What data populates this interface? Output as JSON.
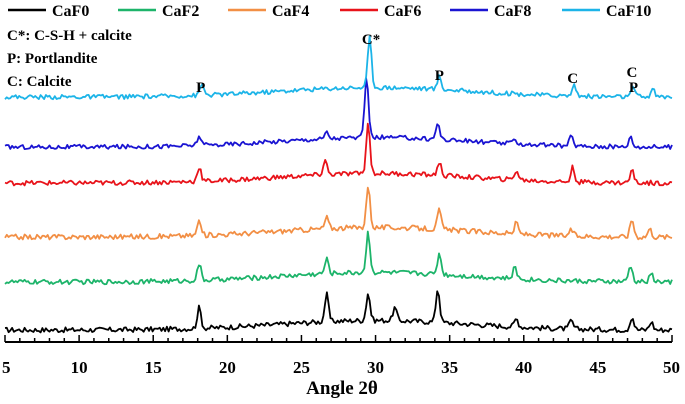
{
  "chart_data": {
    "type": "line",
    "title": "",
    "xlabel": "Angle 2θ",
    "ylabel": "",
    "xlim": [
      5,
      50
    ],
    "xticks": [
      "5",
      "10",
      "15",
      "20",
      "25",
      "30",
      "35",
      "40",
      "45",
      "50"
    ],
    "grid": false,
    "legend_position": "top",
    "series": [
      {
        "name": "CaF0",
        "color": "#000000",
        "baseline": 0,
        "noise": 1.6,
        "peaks": [
          [
            18.1,
            13
          ],
          [
            26.7,
            17
          ],
          [
            29.5,
            17
          ],
          [
            31.3,
            8
          ],
          [
            34.2,
            21
          ],
          [
            39.5,
            5
          ],
          [
            43.2,
            5
          ],
          [
            47.3,
            8
          ],
          [
            48.6,
            5
          ]
        ]
      },
      {
        "name": "CaF2",
        "color": "#1db46a",
        "baseline": 1,
        "noise": 1.5,
        "peaks": [
          [
            18.1,
            10
          ],
          [
            26.7,
            9
          ],
          [
            29.5,
            25
          ],
          [
            34.3,
            13
          ],
          [
            39.4,
            7
          ],
          [
            47.2,
            10
          ],
          [
            48.6,
            5
          ]
        ]
      },
      {
        "name": "CaF4",
        "color": "#f28f45",
        "baseline": 2,
        "noise": 1.6,
        "peaks": [
          [
            18.1,
            9
          ],
          [
            26.7,
            7
          ],
          [
            29.5,
            26
          ],
          [
            34.3,
            12
          ],
          [
            39.5,
            7
          ],
          [
            43.2,
            4
          ],
          [
            47.3,
            11
          ],
          [
            48.5,
            5
          ]
        ]
      },
      {
        "name": "CaF6",
        "color": "#e8131a",
        "baseline": 3,
        "noise": 1.5,
        "peaks": [
          [
            18.1,
            9
          ],
          [
            26.6,
            9
          ],
          [
            29.5,
            31
          ],
          [
            34.3,
            8
          ],
          [
            39.5,
            6
          ],
          [
            43.3,
            9
          ],
          [
            47.3,
            8
          ]
        ]
      },
      {
        "name": "CaF8",
        "color": "#1a14d2",
        "baseline": 4,
        "noise": 1.4,
        "peaks": [
          [
            18.1,
            6
          ],
          [
            26.7,
            4
          ],
          [
            29.4,
            38
          ],
          [
            34.2,
            10
          ],
          [
            39.4,
            3
          ],
          [
            43.2,
            6
          ],
          [
            47.2,
            6
          ]
        ]
      },
      {
        "name": "CaF10",
        "color": "#1cb4e8",
        "baseline": 5,
        "noise": 1.4,
        "peaks": [
          [
            18.3,
            7
          ],
          [
            29.6,
            31
          ],
          [
            34.3,
            8
          ],
          [
            43.4,
            7
          ],
          [
            47.4,
            6
          ],
          [
            48.7,
            5
          ]
        ]
      }
    ],
    "notes": [
      "C*: C-S-H + calcite",
      "P: Portlandite",
      "C: Calcite"
    ],
    "peak_labels": [
      {
        "text": "P",
        "x": 18.2
      },
      {
        "text": "C*",
        "x": 29.7
      },
      {
        "text": "P",
        "x": 34.3
      },
      {
        "text": "C",
        "x": 43.3
      },
      {
        "text": "C",
        "x": 47.3
      },
      {
        "text": "P",
        "x": 47.4
      }
    ]
  }
}
